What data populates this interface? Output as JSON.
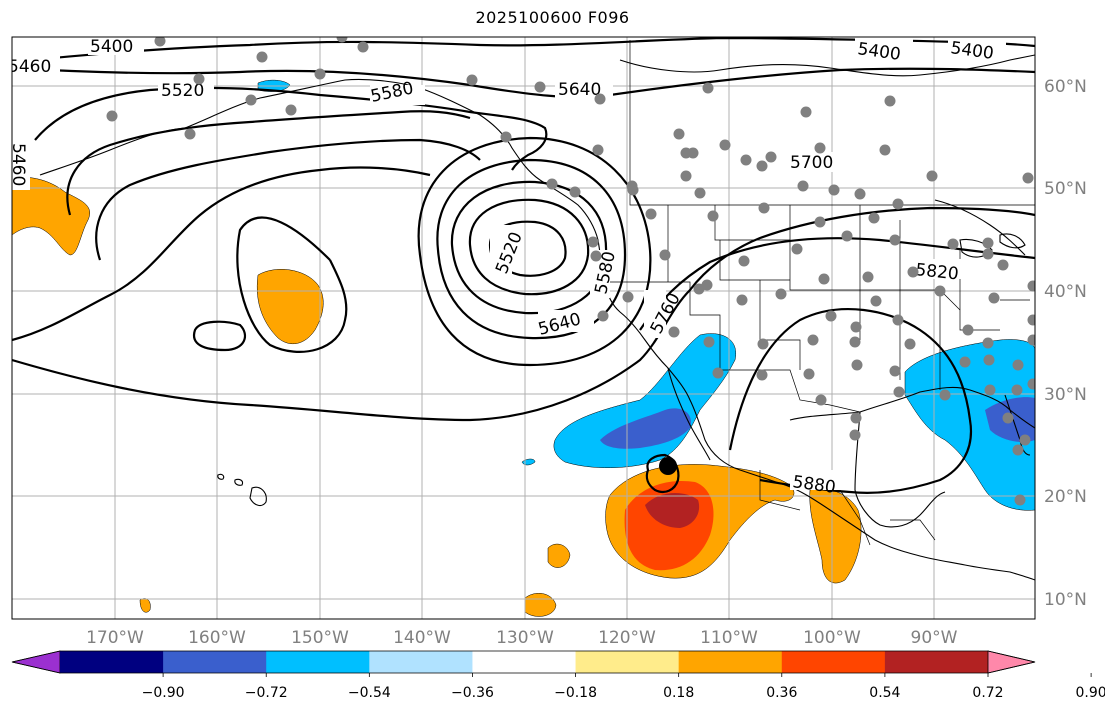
{
  "title": "2025100600 F096",
  "lon_labels": [
    {
      "text": "170°W"
    },
    {
      "text": "160°W"
    },
    {
      "text": "150°W"
    },
    {
      "text": "140°W"
    },
    {
      "text": "130°W"
    },
    {
      "text": "120°W"
    },
    {
      "text": "110°W"
    },
    {
      "text": "100°W"
    },
    {
      "text": "90°W"
    }
  ],
  "lat_labels": [
    {
      "text": "60°N"
    },
    {
      "text": "50°N"
    },
    {
      "text": "40°N"
    },
    {
      "text": "30°N"
    },
    {
      "text": "20°N"
    },
    {
      "text": "10°N"
    }
  ],
  "contour_labels": [
    "5400",
    "5460",
    "5520",
    "5580",
    "5640",
    "5700",
    "5760",
    "5820",
    "5880"
  ],
  "colorbar": {
    "ticks": [
      "−0.90",
      "−0.72",
      "−0.54",
      "−0.36",
      "−0.18",
      "0.18",
      "0.36",
      "0.54",
      "0.72",
      "0.90"
    ],
    "colors": [
      "#9b30d0",
      "#000080",
      "#3a5fcd",
      "#00bfff",
      "#b0e2ff",
      "#ffffff",
      "#ffec8b",
      "#ffa500",
      "#ff4500",
      "#b22222",
      "#ff88aa"
    ]
  },
  "colors": {
    "grid": "#b0b0b0",
    "station_dot": "#808080",
    "label_gray": "#808080"
  }
}
